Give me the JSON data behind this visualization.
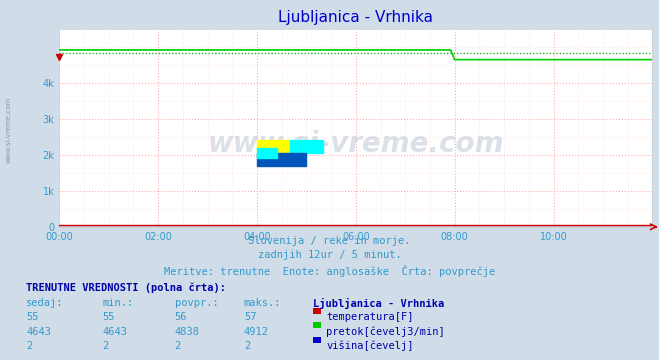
{
  "title": "Ljubljanica - Vrhnika",
  "title_color": "#0000cc",
  "bg_color": "#d0dde8",
  "plot_bg_color": "#ffffff",
  "grid_color_major": "#ffaaaa",
  "grid_color_minor": "#ffdddd",
  "x_min": 0,
  "x_max": 144,
  "y_min": 0,
  "y_max": 5500,
  "x_ticks": [
    0,
    24,
    48,
    72,
    96,
    120,
    144
  ],
  "x_tick_labels": [
    "00:00",
    "02:00",
    "04:00",
    "06:00",
    "08:00",
    "10:00",
    ""
  ],
  "y_ticks": [
    0,
    1000,
    2000,
    3000,
    4000
  ],
  "y_tick_labels": [
    "0",
    "1k",
    "2k",
    "3k",
    "4k"
  ],
  "temp_value": 55,
  "temp_min": 55,
  "temp_avg": 56,
  "temp_max": 57,
  "flow_value": 4643,
  "flow_min": 4643,
  "flow_avg": 4838,
  "flow_max": 4912,
  "height_value": 2,
  "height_min": 2,
  "height_avg": 2,
  "height_max": 2,
  "temp_color": "#cc0000",
  "flow_color": "#00cc00",
  "height_color": "#0000cc",
  "avg_color_dotted": "#00aa00",
  "watermark": "www.si-vreme.com",
  "subtitle1": "Slovenija / reke in morje.",
  "subtitle2": "zadnjih 12ur / 5 minut.",
  "subtitle3": "Meritve: trenutne  Enote: anglosaške  Črta: povprečje",
  "table_header": "TRENUTNE VREDNOSTI (polna črta):",
  "col_sedaj": "sedaj:",
  "col_min": "min.:",
  "col_povpr": "povpr.:",
  "col_maks": "maks.:",
  "station_name": "Ljubljanica - Vrhnika",
  "label_temp": "temperatura[F]",
  "label_flow": "pretok[čevelj3/min]",
  "label_height": "višina[čevelj]",
  "sidebar_text": "www.si-vreme.com",
  "n_points": 144,
  "flow_drop_at": 96,
  "flow_before_drop": 4912,
  "flow_after_drop": 4643,
  "flow_avg_value": 4838,
  "temp_line_value": 55,
  "height_line_value": 2
}
